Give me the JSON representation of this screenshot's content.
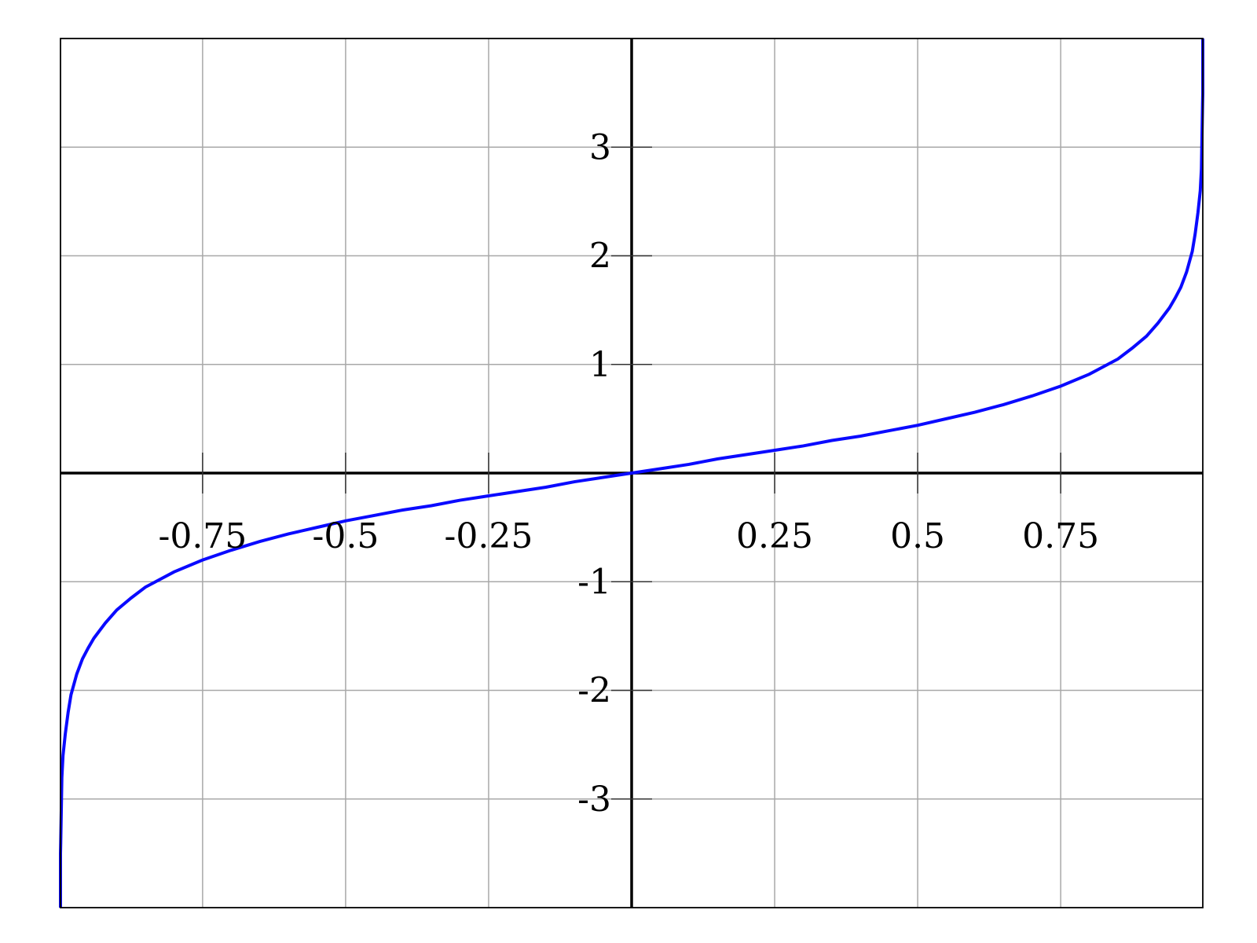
{
  "chart_data": {
    "type": "line",
    "title": "",
    "xlabel": "",
    "ylabel": "",
    "xlim": [
      -0.9984,
      0.9984
    ],
    "ylim": [
      -4.0,
      4.0
    ],
    "grid": true,
    "legend": "none",
    "x_ticks": [
      -0.75,
      -0.5,
      -0.25,
      0.25,
      0.5,
      0.75
    ],
    "x_tick_labels": [
      "-0.75",
      "-0.5",
      "-0.25",
      "0.25",
      "0.5",
      "0.75"
    ],
    "y_ticks": [
      -3,
      -2,
      -1,
      1,
      2,
      3
    ],
    "y_tick_labels": [
      "-3",
      "-2",
      "-1",
      "1",
      "2",
      "3"
    ],
    "colors": {
      "curve": "#0a0aff",
      "grid": "#a8a8a8",
      "axis": "#000000"
    },
    "series": [
      {
        "x": [
          -0.9984,
          -0.998,
          -0.996,
          -0.994,
          -0.99,
          -0.985,
          -0.98,
          -0.97,
          -0.96,
          -0.95,
          -0.94,
          -0.92,
          -0.9,
          -0.875,
          -0.85,
          -0.8,
          -0.75,
          -0.7,
          -0.65,
          -0.6,
          -0.55,
          -0.5,
          -0.45,
          -0.4,
          -0.35,
          -0.3,
          -0.25,
          -0.2,
          -0.15,
          -0.1,
          -0.05,
          0,
          0.05,
          0.1,
          0.15,
          0.2,
          0.25,
          0.3,
          0.35,
          0.4,
          0.45,
          0.5,
          0.55,
          0.6,
          0.65,
          0.7,
          0.75,
          0.8,
          0.85,
          0.875,
          0.9,
          0.92,
          0.94,
          0.95,
          0.96,
          0.97,
          0.98,
          0.985,
          0.99,
          0.994,
          0.996,
          0.998,
          0.9984
        ],
        "y": [
          -3.5,
          -3.4,
          -2.8,
          -2.6,
          -2.4,
          -2.2,
          -2.04,
          -1.85,
          -1.71,
          -1.61,
          -1.52,
          -1.38,
          -1.26,
          -1.15,
          -1.05,
          -0.91,
          -0.8,
          -0.71,
          -0.63,
          -0.56,
          -0.5,
          -0.44,
          -0.39,
          -0.34,
          -0.3,
          -0.25,
          -0.21,
          -0.17,
          -0.13,
          -0.08,
          -0.04,
          0,
          0.04,
          0.08,
          0.13,
          0.17,
          0.21,
          0.25,
          0.3,
          0.34,
          0.39,
          0.44,
          0.5,
          0.56,
          0.63,
          0.71,
          0.8,
          0.91,
          1.05,
          1.15,
          1.26,
          1.38,
          1.52,
          1.61,
          1.71,
          1.85,
          2.04,
          2.2,
          2.4,
          2.6,
          2.8,
          3.4,
          3.5
        ]
      }
    ]
  }
}
